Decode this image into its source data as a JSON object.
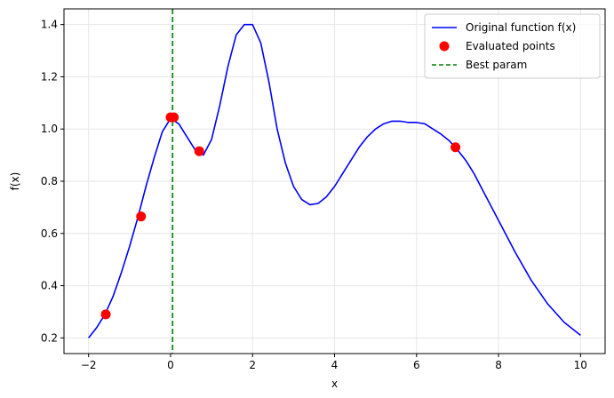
{
  "chart_data": {
    "type": "line",
    "title": "",
    "xlabel": "x",
    "ylabel": "f(x)",
    "xlim": [
      -2.6,
      10.6
    ],
    "ylim": [
      0.14,
      1.46
    ],
    "grid": true,
    "legend_position": "top-right",
    "x_ticks": [
      -2,
      0,
      2,
      4,
      6,
      8,
      10
    ],
    "x_tick_labels": [
      "−2",
      "0",
      "2",
      "4",
      "6",
      "8",
      "10"
    ],
    "y_ticks": [
      0.2,
      0.4,
      0.6,
      0.8,
      1.0,
      1.2,
      1.4
    ],
    "y_tick_labels": [
      "0.2",
      "0.4",
      "0.6",
      "0.8",
      "1.0",
      "1.2",
      "1.4"
    ],
    "series": [
      {
        "name": "Original function f(x)",
        "kind": "line",
        "color": "#0000ff",
        "x": [
          -2.0,
          -1.8,
          -1.6,
          -1.4,
          -1.2,
          -1.0,
          -0.8,
          -0.6,
          -0.4,
          -0.2,
          0.0,
          0.2,
          0.4,
          0.6,
          0.8,
          1.0,
          1.2,
          1.4,
          1.6,
          1.8,
          2.0,
          2.2,
          2.4,
          2.6,
          2.8,
          3.0,
          3.2,
          3.4,
          3.6,
          3.8,
          4.0,
          4.2,
          4.4,
          4.6,
          4.8,
          5.0,
          5.2,
          5.4,
          5.6,
          5.8,
          6.0,
          6.2,
          6.4,
          6.6,
          6.8,
          7.0,
          7.2,
          7.4,
          7.6,
          7.8,
          8.0,
          8.4,
          8.8,
          9.2,
          9.6,
          10.0
        ],
        "y": [
          0.2,
          0.24,
          0.29,
          0.36,
          0.45,
          0.55,
          0.66,
          0.78,
          0.89,
          0.99,
          1.04,
          1.02,
          0.97,
          0.92,
          0.9,
          0.96,
          1.09,
          1.24,
          1.36,
          1.4,
          1.4,
          1.33,
          1.18,
          1.0,
          0.87,
          0.78,
          0.73,
          0.71,
          0.715,
          0.74,
          0.78,
          0.83,
          0.88,
          0.93,
          0.97,
          1.0,
          1.02,
          1.03,
          1.03,
          1.025,
          1.025,
          1.02,
          1.0,
          0.98,
          0.955,
          0.92,
          0.88,
          0.83,
          0.77,
          0.71,
          0.65,
          0.53,
          0.42,
          0.33,
          0.26,
          0.21
        ]
      },
      {
        "name": "Evaluated points",
        "kind": "scatter",
        "color": "#ff0000",
        "x": [
          -1.58,
          -0.72,
          0.0,
          0.08,
          0.7,
          6.95
        ],
        "y": [
          0.29,
          0.665,
          1.045,
          1.045,
          0.915,
          0.93
        ]
      },
      {
        "name": "Best param",
        "kind": "vline",
        "color": "#008000",
        "x": 0.05
      }
    ]
  }
}
